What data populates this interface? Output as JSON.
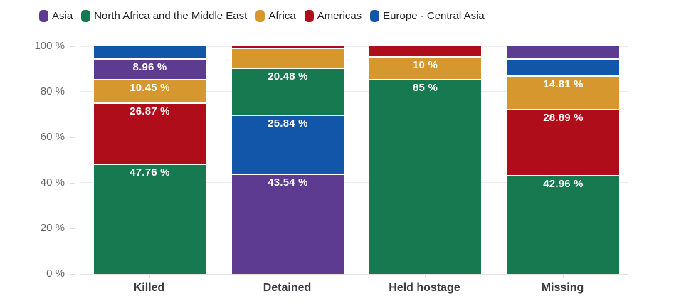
{
  "chart_data": {
    "type": "bar",
    "variant": "stacked-percentage",
    "title": "",
    "unit": "%",
    "categories": [
      "Killed",
      "Detained",
      "Held hostage",
      "Missing"
    ],
    "ylim": [
      0,
      100
    ],
    "ytick_labels": [
      "0 %",
      "20 %",
      "40 %",
      "60 %",
      "80 %",
      "100 %"
    ],
    "grid": true,
    "legend_position": "top-left",
    "series": [
      {
        "name": "Asia",
        "color": "#5c3b90",
        "values": [
          8.96,
          43.54,
          0,
          5.93
        ]
      },
      {
        "name": "North Africa and the Middle East",
        "color": "#17794f",
        "values": [
          47.76,
          20.48,
          85,
          42.96
        ]
      },
      {
        "name": "Africa",
        "color": "#d6982e",
        "values": [
          10.45,
          8.75,
          10,
          14.81
        ]
      },
      {
        "name": "Americas",
        "color": "#b00d1a",
        "values": [
          26.87,
          1.39,
          5,
          28.89
        ]
      },
      {
        "name": "Europe - Central Asia",
        "color": "#1156a9",
        "values": [
          5.97,
          25.84,
          0,
          7.41
        ]
      }
    ],
    "bars": [
      {
        "category": "Killed",
        "segments_top_to_bottom": [
          {
            "region": "Europe - Central Asia",
            "value": 5.97,
            "label": ""
          },
          {
            "region": "Asia",
            "value": 8.96,
            "label": "8.96 %"
          },
          {
            "region": "Africa",
            "value": 10.45,
            "label": "10.45 %"
          },
          {
            "region": "Americas",
            "value": 26.87,
            "label": "26.87 %"
          },
          {
            "region": "North Africa and the Middle East",
            "value": 47.76,
            "label": "47.76 %"
          }
        ]
      },
      {
        "category": "Detained",
        "segments_top_to_bottom": [
          {
            "region": "Americas",
            "value": 1.39,
            "label": ""
          },
          {
            "region": "Africa",
            "value": 8.75,
            "label": ""
          },
          {
            "region": "North Africa and the Middle East",
            "value": 20.48,
            "label": "20.48 %"
          },
          {
            "region": "Europe - Central Asia",
            "value": 25.84,
            "label": "25.84 %"
          },
          {
            "region": "Asia",
            "value": 43.54,
            "label": "43.54 %"
          }
        ]
      },
      {
        "category": "Held hostage",
        "segments_top_to_bottom": [
          {
            "region": "Americas",
            "value": 5,
            "label": ""
          },
          {
            "region": "Africa",
            "value": 10,
            "label": "10 %"
          },
          {
            "region": "North Africa and the Middle East",
            "value": 85,
            "label": "85 %"
          }
        ]
      },
      {
        "category": "Missing",
        "segments_top_to_bottom": [
          {
            "region": "Asia",
            "value": 5.93,
            "label": ""
          },
          {
            "region": "Europe - Central Asia",
            "value": 7.41,
            "label": ""
          },
          {
            "region": "Africa",
            "value": 14.81,
            "label": "14.81 %"
          },
          {
            "region": "Americas",
            "value": 28.89,
            "label": "28.89 %"
          },
          {
            "region": "North Africa and the Middle East",
            "value": 42.96,
            "label": "42.96 %"
          }
        ]
      }
    ],
    "colors": {
      "background": "#ffffff",
      "gridline": "#ececec",
      "axis_line": "#e3e3e3",
      "y_tick_text": "#65656d",
      "x_label_text": "#3c3c46",
      "legend_text": "#20202a",
      "value_label_text": "#ffffff"
    }
  }
}
